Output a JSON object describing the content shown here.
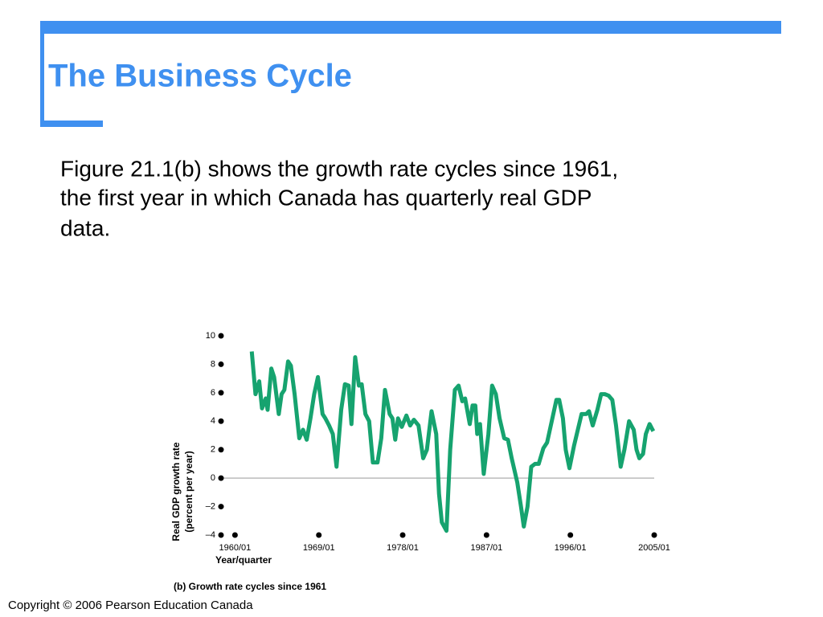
{
  "slide": {
    "title": "The Business Cycle",
    "body": [
      "Figure 21.1(b) shows the growth rate cycles since 1961,",
      "the first year in which Canada has quarterly real GDP",
      "data."
    ],
    "footer": "Copyright © 2006 Pearson Education Canada"
  },
  "chart_data": {
    "type": "line",
    "caption": "(b) Growth rate cycles since 1961",
    "xlabel": "Year/quarter",
    "ylabel": [
      "Real GDP growth rate",
      "(percent per year)"
    ],
    "xlim": [
      1958.5,
      2005
    ],
    "ylim": [
      -4,
      10
    ],
    "xticks": [
      {
        "value": 1960,
        "label": "1960/01"
      },
      {
        "value": 1969,
        "label": "1969/01"
      },
      {
        "value": 1978,
        "label": "1978/01"
      },
      {
        "value": 1987,
        "label": "1987/01"
      },
      {
        "value": 1996,
        "label": "1996/01"
      },
      {
        "value": 2005,
        "label": "2005/01"
      }
    ],
    "yticks": [
      {
        "value": -4,
        "label": "–4"
      },
      {
        "value": -2,
        "label": "–2"
      },
      0,
      2,
      4,
      6,
      8,
      10
    ],
    "zero_line": true,
    "series": [
      {
        "color": "#16a36f",
        "x": [
          1961.8,
          1962.2,
          1962.6,
          1962.9,
          1963.3,
          1963.5,
          1963.9,
          1964.2,
          1964.7,
          1965.0,
          1965.3,
          1965.7,
          1966.0,
          1966.4,
          1966.9,
          1967.3,
          1967.7,
          1968.1,
          1968.5,
          1968.9,
          1969.4,
          1969.7,
          1970.1,
          1970.5,
          1970.9,
          1971.4,
          1971.8,
          1972.2,
          1972.5,
          1972.9,
          1973.3,
          1973.6,
          1974.0,
          1974.4,
          1974.8,
          1975.3,
          1975.7,
          1976.1,
          1976.6,
          1976.9,
          1977.2,
          1977.5,
          1977.9,
          1978.4,
          1978.8,
          1979.2,
          1979.7,
          1980.2,
          1980.6,
          1981.1,
          1981.6,
          1981.9,
          1982.2,
          1982.7,
          1983.1,
          1983.6,
          1984.0,
          1984.4,
          1984.7,
          1985.2,
          1985.5,
          1985.8,
          1986.0,
          1986.3,
          1986.7,
          1987.2,
          1987.6,
          1988.0,
          1988.4,
          1988.9,
          1989.3,
          1989.7,
          1990.3,
          1990.7,
          1991.0,
          1991.4,
          1991.8,
          1992.2,
          1992.6,
          1993.1,
          1993.5,
          1993.9,
          1994.5,
          1994.8,
          1995.2,
          1995.5,
          1995.9,
          1996.4,
          1996.8,
          1997.2,
          1997.7,
          1998.0,
          1998.4,
          1998.9,
          1999.3,
          1999.7,
          2000.1,
          2000.5,
          2000.9,
          2001.4,
          2001.8,
          2002.3,
          2002.8,
          2003.1,
          2003.4,
          2003.8,
          2004.1,
          2004.5,
          2004.9
        ],
        "values": [
          8.9,
          5.9,
          6.8,
          4.9,
          5.6,
          4.8,
          7.7,
          7.1,
          4.5,
          5.9,
          6.2,
          8.2,
          7.9,
          5.9,
          2.8,
          3.4,
          2.7,
          4.2,
          5.9,
          7.1,
          4.5,
          4.2,
          3.7,
          3.1,
          0.8,
          4.8,
          6.6,
          6.5,
          3.8,
          8.5,
          6.5,
          6.6,
          4.5,
          4.0,
          1.1,
          1.1,
          2.8,
          6.2,
          4.5,
          4.2,
          2.7,
          4.2,
          3.6,
          4.4,
          3.7,
          4.1,
          3.7,
          1.4,
          2.0,
          4.7,
          3.1,
          -1.1,
          -3.1,
          -3.7,
          2.0,
          6.2,
          6.5,
          5.4,
          5.6,
          3.8,
          5.1,
          5.1,
          3.1,
          3.8,
          0.3,
          3.1,
          6.5,
          5.9,
          4.2,
          2.8,
          2.7,
          1.4,
          -0.3,
          -2.0,
          -3.4,
          -2.0,
          0.8,
          1.0,
          1.0,
          2.1,
          2.5,
          3.7,
          5.5,
          5.5,
          4.2,
          2.0,
          0.7,
          2.3,
          3.4,
          4.5,
          4.5,
          4.7,
          3.7,
          4.8,
          5.9,
          5.9,
          5.8,
          5.5,
          3.7,
          0.8,
          2.0,
          4.0,
          3.4,
          2.0,
          1.4,
          1.7,
          3.1,
          3.8,
          3.3
        ]
      }
    ]
  }
}
